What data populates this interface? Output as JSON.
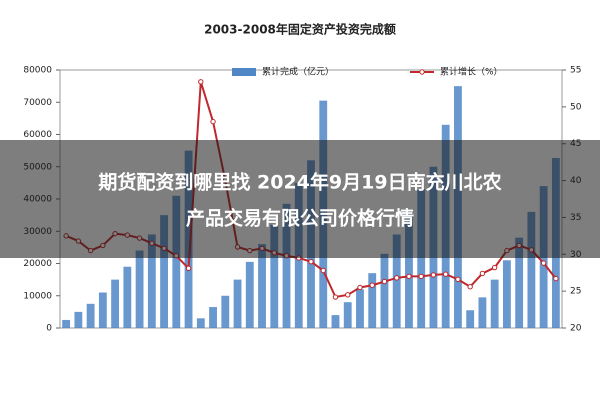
{
  "chart_data": {
    "type": "bar",
    "title": "2003-2008年固定资产投资完成额",
    "categories": [
      null,
      null,
      null,
      null,
      null,
      null,
      null,
      null,
      null,
      null,
      null,
      null,
      null,
      null,
      null,
      null,
      null,
      null,
      null,
      null,
      null,
      null,
      null,
      null,
      null,
      null,
      null,
      null,
      null,
      null,
      null,
      null,
      null,
      null,
      null,
      null,
      null,
      null,
      null,
      null,
      null
    ],
    "series": [
      {
        "name": "累计完成（亿元）",
        "color": "#4f86c6",
        "type": "bar",
        "values": [
          2500,
          5000,
          7500,
          11000,
          15000,
          19000,
          24000,
          29000,
          35000,
          41000,
          55000,
          3000,
          6500,
          10000,
          15000,
          20500,
          26000,
          32000,
          38500,
          45000,
          52000,
          70500,
          4000,
          8000,
          12000,
          17000,
          23000,
          29000,
          36000,
          43000,
          50000,
          63000,
          75000,
          5500,
          9500,
          15000,
          21000,
          28000,
          36000,
          44000,
          52700
        ]
      },
      {
        "name": "累计增长（%）",
        "color": "#c0282d",
        "type": "line",
        "axis": "y2",
        "values": [
          32.5,
          31.8,
          30.5,
          31.2,
          32.8,
          32.6,
          32.2,
          31.5,
          30.8,
          29.8,
          28.1,
          53.4,
          48,
          40,
          31,
          30.5,
          30.8,
          30.2,
          29.8,
          29.5,
          29,
          27.8,
          24.2,
          24.5,
          25.5,
          25.8,
          26.3,
          26.8,
          27,
          27,
          27.2,
          27.3,
          26.6,
          25.6,
          27.4,
          28.2,
          30.5,
          31.2,
          30.6,
          28.8,
          26.7
        ]
      }
    ],
    "ylim": [
      0,
      80000
    ],
    "yticks": [
      0,
      10000,
      20000,
      30000,
      40000,
      50000,
      60000,
      70000,
      80000
    ],
    "y2lim": [
      20,
      55
    ],
    "y2ticks": [
      20,
      25,
      30,
      35,
      40,
      45,
      50,
      55
    ]
  },
  "banner": {
    "line1": "期货配资到哪里找 2024年9月19日南充川北农",
    "line2": "产品交易有限公司价格行情"
  }
}
